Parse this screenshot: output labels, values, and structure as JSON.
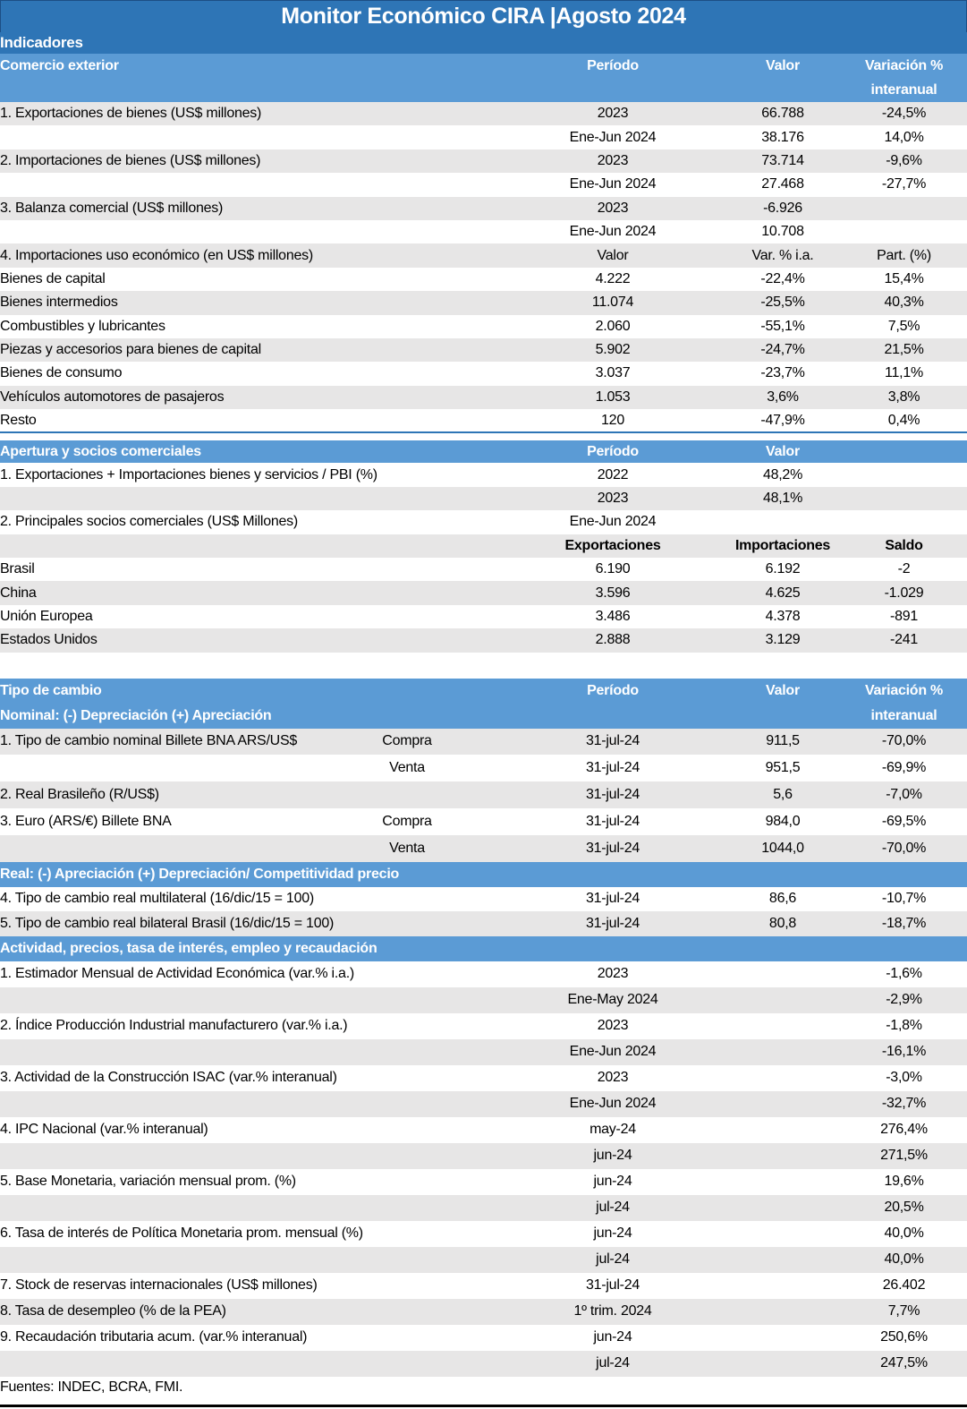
{
  "doc": {
    "title": "Monitor Económico CIRA |Agosto 2024",
    "footer": "Fuentes: INDEC, BCRA, FMI.",
    "colors": {
      "title_bg": "#2E75B6",
      "band_bg": "#2E75B6",
      "section_header_bg": "#5B9BD5",
      "stripe_row_bg": "#E7E6E6",
      "header_text": "#FFFFFF",
      "body_text": "#000000",
      "bottom_rule": "#000000"
    },
    "tables": [
      {
        "name": "comercio-y-apertura",
        "band": "Indicadores",
        "sections": [
          {
            "key": "comercio",
            "header_lines": [
              [
                "Comercio exterior",
                "Período",
                "Valor",
                "Variación %"
              ],
              [
                "",
                "",
                "",
                "interanual"
              ]
            ],
            "rows": [
              {
                "c": [
                  "1. Exportaciones de bienes (US$ millones)",
                  "",
                  "2023",
                  "66.788",
                  "-24,5%"
                ],
                "bg": "gray"
              },
              {
                "c": [
                  "",
                  "",
                  "Ene-Jun 2024",
                  "38.176",
                  "14,0%"
                ]
              },
              {
                "c": [
                  "2. Importaciones de bienes (US$ millones)",
                  "",
                  "2023",
                  "73.714",
                  "-9,6%"
                ],
                "bg": "gray"
              },
              {
                "c": [
                  "",
                  "",
                  "Ene-Jun 2024",
                  "27.468",
                  "-27,7%"
                ]
              },
              {
                "c": [
                  "3. Balanza comercial (US$ millones)",
                  "",
                  "2023",
                  "-6.926",
                  ""
                ],
                "bg": "gray"
              },
              {
                "c": [
                  "",
                  "",
                  "Ene-Jun 2024",
                  "10.708",
                  ""
                ]
              },
              {
                "c": [
                  "4. Importaciones uso económico (en US$ millones)",
                  "",
                  "Valor",
                  "Var. % i.a.",
                  "Part. (%)"
                ],
                "bg": "gray"
              },
              {
                "c": [
                  "Bienes de capital",
                  "",
                  "4.222",
                  "-22,4%",
                  "15,4%"
                ],
                "ind": 1
              },
              {
                "c": [
                  "Bienes intermedios",
                  "",
                  "11.074",
                  "-25,5%",
                  "40,3%"
                ],
                "ind": 1,
                "bg": "gray"
              },
              {
                "c": [
                  "Combustibles y lubricantes",
                  "",
                  "2.060",
                  "-55,1%",
                  "7,5%"
                ],
                "ind": 1
              },
              {
                "c": [
                  "Piezas y accesorios para bienes de capital",
                  "",
                  "5.902",
                  "-24,7%",
                  "21,5%"
                ],
                "ind": 1,
                "bg": "gray"
              },
              {
                "c": [
                  "Bienes de consumo",
                  "",
                  "3.037",
                  "-23,7%",
                  "11,1%"
                ],
                "ind": 1
              },
              {
                "c": [
                  "Vehículos automotores de pasajeros",
                  "",
                  "1.053",
                  "3,6%",
                  "3,8%"
                ],
                "ind": 1,
                "bg": "gray"
              },
              {
                "c": [
                  "Resto",
                  "",
                  "120",
                  "-47,9%",
                  "0,4%"
                ],
                "ind": 1
              },
              {
                "sep": true
              }
            ]
          },
          {
            "key": "apertura",
            "header_lines": [
              [
                "Apertura y socios comerciales",
                "Período",
                "Valor",
                ""
              ]
            ],
            "rows": [
              {
                "c": [
                  "1. Exportaciones + Importaciones bienes y servicios / PBI (%)",
                  "",
                  "2022",
                  "48,2%",
                  ""
                ]
              },
              {
                "c": [
                  "",
                  "",
                  "2023",
                  "48,1%",
                  ""
                ],
                "bg": "gray"
              },
              {
                "c": [
                  "2. Principales socios comerciales (US$ Millones)",
                  "",
                  "Ene-Jun 2024",
                  "",
                  ""
                ]
              },
              {
                "c": [
                  "",
                  "",
                  "Exportaciones",
                  "Importaciones",
                  "Saldo"
                ],
                "bg": "gray",
                "bold": true
              },
              {
                "c": [
                  "Brasil",
                  "",
                  "6.190",
                  "6.192",
                  "-2"
                ],
                "ind": 2
              },
              {
                "c": [
                  "China",
                  "",
                  "3.596",
                  "4.625",
                  "-1.029"
                ],
                "ind": 2,
                "bg": "gray"
              },
              {
                "c": [
                  "Unión Europea",
                  "",
                  "3.486",
                  "4.378",
                  "-891"
                ],
                "ind": 2
              },
              {
                "c": [
                  "Estados Unidos",
                  "",
                  "2.888",
                  "3.129",
                  "-241"
                ],
                "ind": 2,
                "bg": "gray"
              }
            ]
          }
        ]
      },
      {
        "name": "tipo-de-cambio-y-actividad",
        "footer": "Fuentes: INDEC, BCRA, FMI.",
        "sections": [
          {
            "key": "tipo",
            "header_lines": [
              [
                "Tipo de cambio",
                "Período",
                "Valor",
                "Variación %"
              ],
              [
                "Nominal: (-) Depreciación (+) Apreciación",
                "",
                "",
                "interanual"
              ]
            ],
            "rows": [
              {
                "c": [
                  "1. Tipo de cambio nominal Billete BNA ARS/US$",
                  "Compra",
                  "31-jul-24",
                  "911,5",
                  "-70,0%"
                ],
                "bg": "gray"
              },
              {
                "c": [
                  "",
                  "Venta",
                  "31-jul-24",
                  "951,5",
                  "-69,9%"
                ]
              },
              {
                "c": [
                  "2. Real Brasileño (R/US$)",
                  "",
                  "31-jul-24",
                  "5,6",
                  "-7,0%"
                ],
                "bg": "gray"
              },
              {
                "c": [
                  "3. Euro (ARS/€) Billete BNA",
                  "Compra",
                  "31-jul-24",
                  "984,0",
                  "-69,5%"
                ]
              },
              {
                "c": [
                  "",
                  "Venta",
                  "31-jul-24",
                  "1044,0",
                  "-70,0%"
                ],
                "bg": "gray"
              }
            ]
          },
          {
            "key": "real",
            "header_lines": [
              [
                "Real: (-) Apreciación (+) Depreciación/ Competitividad precio",
                "",
                "",
                ""
              ]
            ],
            "rows": [
              {
                "c": [
                  "4. Tipo de cambio real multilateral (16/dic/15 = 100)",
                  "",
                  "31-jul-24",
                  "86,6",
                  "-10,7%"
                ]
              },
              {
                "c": [
                  "5. Tipo de cambio real bilateral Brasil (16/dic/15 = 100)",
                  "",
                  "31-jul-24",
                  "80,8",
                  "-18,7%"
                ],
                "bg": "gray"
              }
            ]
          },
          {
            "key": "actividad",
            "header_lines": [
              [
                "Actividad, precios, tasa de interés, empleo y recaudación",
                "",
                "",
                ""
              ]
            ],
            "rows": [
              {
                "c": [
                  "1. Estimador Mensual de Actividad Económica (var.% i.a.)",
                  "",
                  "2023",
                  "",
                  "-1,6%"
                ]
              },
              {
                "c": [
                  "",
                  "",
                  "Ene-May 2024",
                  "",
                  "-2,9%"
                ],
                "bg": "gray"
              },
              {
                "c": [
                  "2. Índice Producción Industrial manufacturero (var.% i.a.)",
                  "",
                  "2023",
                  "",
                  "-1,8%"
                ]
              },
              {
                "c": [
                  "",
                  "",
                  "Ene-Jun 2024",
                  "",
                  "-16,1%"
                ],
                "bg": "gray"
              },
              {
                "c": [
                  "3. Actividad de la Construcción ISAC (var.% interanual)",
                  "",
                  "2023",
                  "",
                  "-3,0%"
                ]
              },
              {
                "c": [
                  "",
                  "",
                  "Ene-Jun 2024",
                  "",
                  "-32,7%"
                ],
                "bg": "gray"
              },
              {
                "c": [
                  "4. IPC Nacional (var.% interanual)",
                  "",
                  "may-24",
                  "",
                  "276,4%"
                ]
              },
              {
                "c": [
                  "",
                  "",
                  "jun-24",
                  "",
                  "271,5%"
                ],
                "bg": "gray"
              },
              {
                "c": [
                  "5. Base Monetaria, variación mensual prom. (%)",
                  "",
                  "jun-24",
                  "",
                  "19,6%"
                ]
              },
              {
                "c": [
                  "",
                  "",
                  "jul-24",
                  "",
                  "20,5%"
                ],
                "bg": "gray"
              },
              {
                "c": [
                  "6. Tasa de interés de Política Monetaria prom. mensual (%)",
                  "",
                  "jun-24",
                  "",
                  "40,0%"
                ]
              },
              {
                "c": [
                  "",
                  "",
                  "jul-24",
                  "",
                  "40,0%"
                ],
                "bg": "gray"
              },
              {
                "c": [
                  "7. Stock de reservas internacionales (US$ millones)",
                  "",
                  "31-jul-24",
                  "",
                  "26.402"
                ]
              },
              {
                "c": [
                  "8. Tasa de desempleo (% de la PEA)",
                  "",
                  "1º trim. 2024",
                  "",
                  "7,7%"
                ],
                "bg": "gray"
              },
              {
                "c": [
                  "9. Recaudación tributaria acum. (var.% interanual)",
                  "",
                  "jun-24",
                  "",
                  "250,6%"
                ]
              },
              {
                "c": [
                  "",
                  "",
                  "jul-24",
                  "",
                  "247,5%"
                ],
                "bg": "gray"
              }
            ]
          }
        ]
      }
    ]
  }
}
